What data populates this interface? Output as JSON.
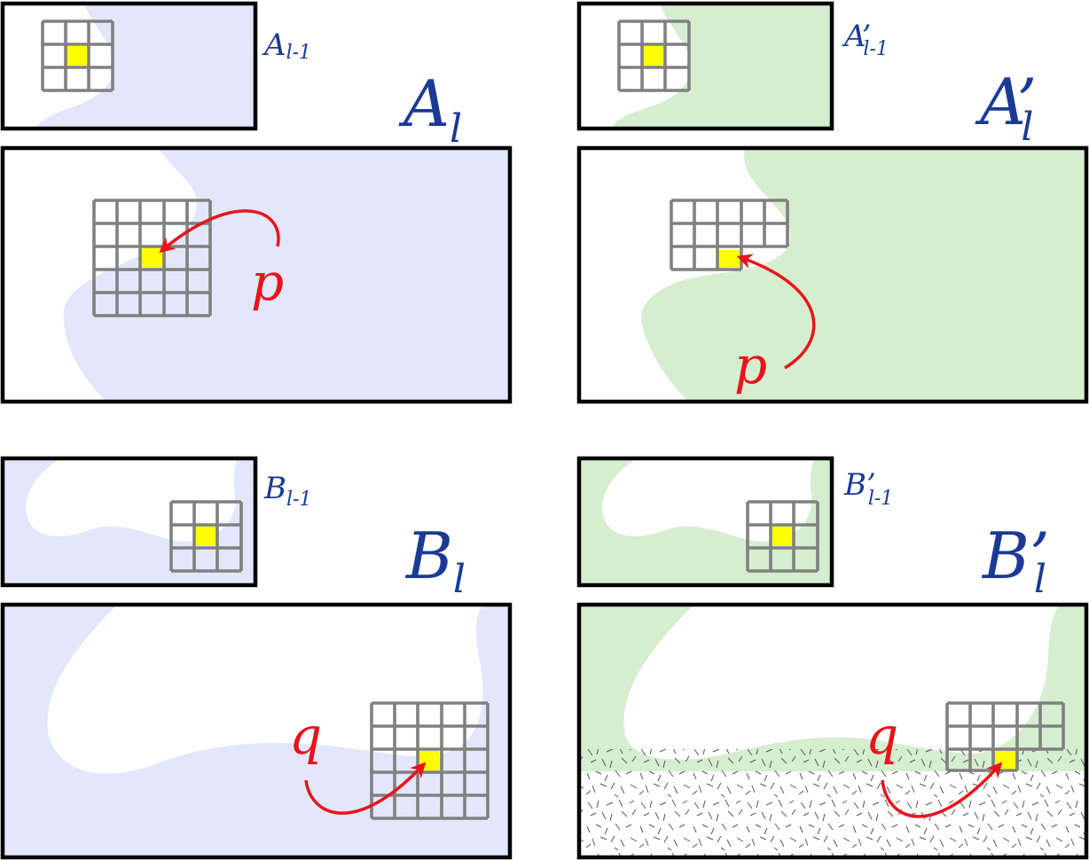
{
  "colors": {
    "blue_region": "#e3e7fb",
    "green_region": "#d5eed0",
    "highlight": "#ffff00",
    "grid": "#808080",
    "label": "#1a3a96",
    "arrow": "#e8141b"
  },
  "labels": {
    "a_lm1_base": "A",
    "a_lm1_sub": "l-1",
    "a_l_base": "A",
    "a_l_sub": "l",
    "ap_lm1_base": "A",
    "ap_lm1_prime": "’",
    "ap_lm1_sub": "l-1",
    "ap_l_base": "A",
    "ap_l_prime": "’",
    "ap_l_sub": "l",
    "b_lm1_base": "B",
    "b_lm1_sub": "l-1",
    "b_l_base": "B",
    "b_l_sub": "l",
    "bp_lm1_base": "B",
    "bp_lm1_prime": "’",
    "bp_lm1_sub": "l-1",
    "bp_l_base": "B",
    "bp_l_prime": "’",
    "bp_l_sub": "l"
  },
  "vars": {
    "p": "p",
    "q": "q"
  },
  "icons": {
    "arrow": "curved-arrow-icon",
    "grid": "neighborhood-grid-icon"
  }
}
